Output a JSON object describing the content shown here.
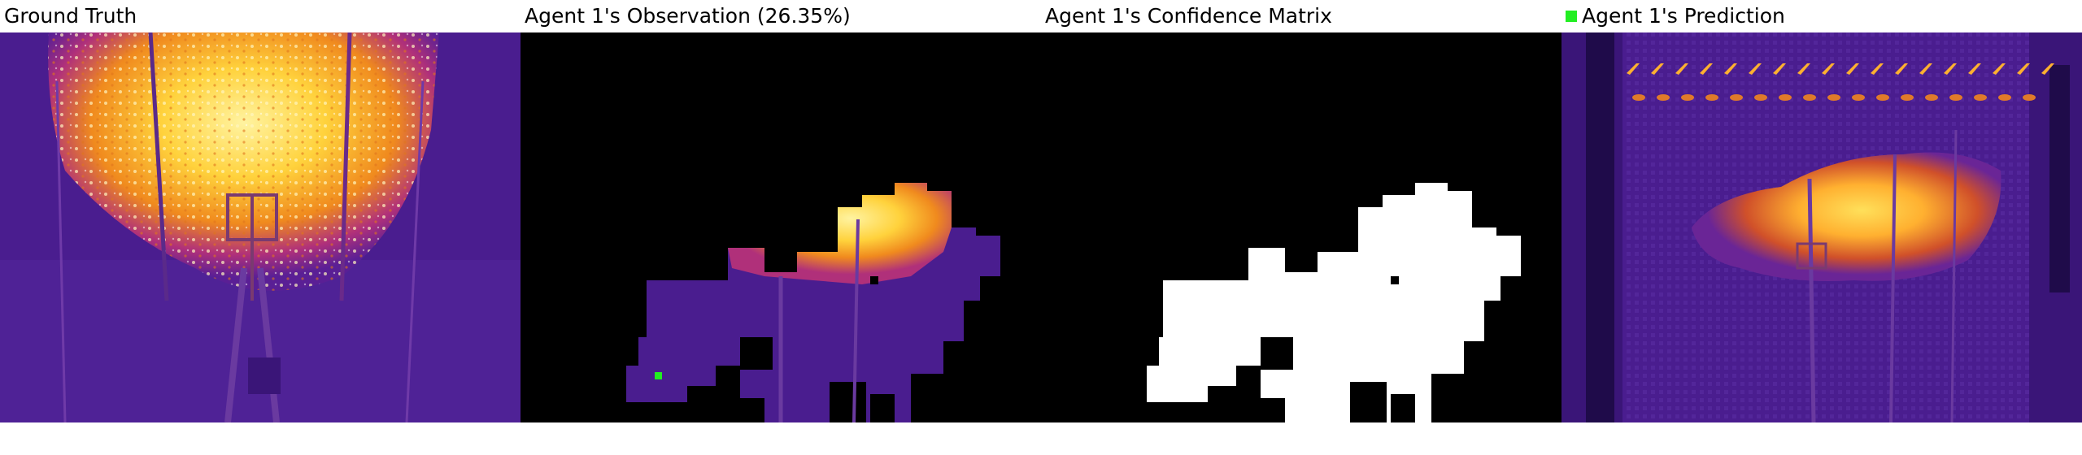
{
  "panels": [
    {
      "title": "Ground Truth"
    },
    {
      "title": "Agent 1's Observation (26.35%)"
    },
    {
      "title": "Agent 1's Confidence Matrix"
    },
    {
      "title": "Agent 1's Prediction",
      "legend_color": "#22ee22"
    }
  ],
  "colors": {
    "background_purple": "#4a1d8f",
    "dark_purple": "#2e0a6e",
    "hot_yellow": "#ffd23c",
    "hot_orange": "#f08a1e",
    "magenta": "#b0307a",
    "marker_green": "#22ee22",
    "mask_white": "#ffffff",
    "mask_black": "#000000"
  }
}
